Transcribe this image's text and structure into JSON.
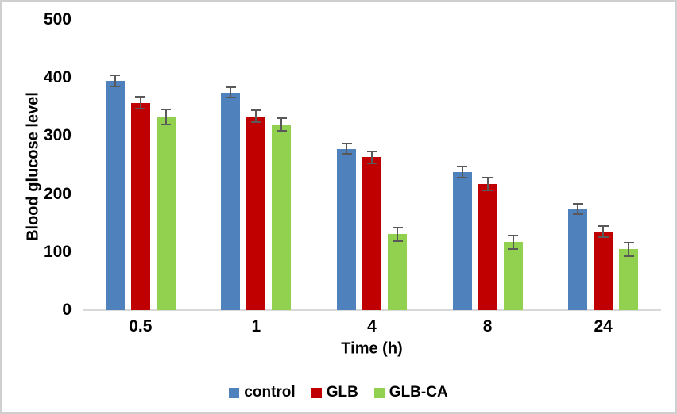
{
  "chart_data": {
    "type": "bar",
    "title": "",
    "xlabel": "Time (h)",
    "ylabel": "Blood glucose level",
    "categories": [
      "0.5",
      "1",
      "4",
      "8",
      "24"
    ],
    "series": [
      {
        "name": "control",
        "color": "#4F81BD",
        "values": [
          395,
          375,
          278,
          238,
          174
        ],
        "errors": [
          11,
          10,
          10,
          11,
          10
        ]
      },
      {
        "name": "GLB",
        "color": "#C00000",
        "values": [
          357,
          334,
          263,
          217,
          135
        ],
        "errors": [
          12,
          12,
          12,
          12,
          11
        ]
      },
      {
        "name": "GLB-CA",
        "color": "#92D050",
        "values": [
          333,
          320,
          131,
          117,
          105
        ],
        "errors": [
          14,
          12,
          13,
          13,
          13
        ]
      }
    ],
    "ylim": [
      0,
      500
    ],
    "ytick_step": 100,
    "ytick_labels": [
      "0",
      "100",
      "200",
      "300",
      "400",
      "500"
    ],
    "grid": false,
    "legend_position": "bottom",
    "error_bar_color": "#595959",
    "axis_line_color": "#D9D9D9",
    "text_color": "#000000"
  }
}
